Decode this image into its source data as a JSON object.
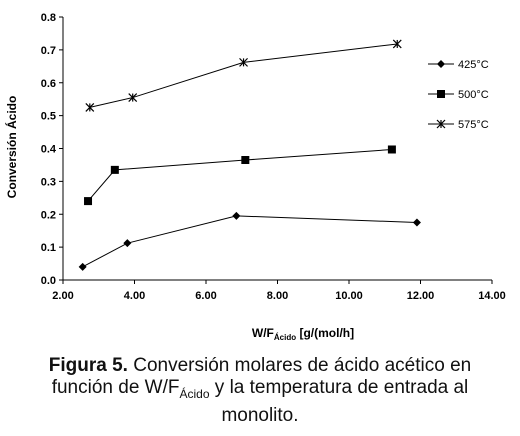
{
  "chart_data": {
    "type": "line",
    "ylabel": "Conversión Ácido",
    "xlabel": {
      "main": "W/F",
      "sub": "Ácido",
      "rest": " [g/(mol/h]"
    },
    "xlim": [
      2.0,
      14.0
    ],
    "ylim": [
      0.0,
      0.8
    ],
    "x_ticks": [
      "2.00",
      "4.00",
      "6.00",
      "8.00",
      "10.00",
      "12.00",
      "14.00"
    ],
    "y_ticks": [
      "0.0",
      "0.1",
      "0.2",
      "0.3",
      "0.4",
      "0.5",
      "0.6",
      "0.7",
      "0.8"
    ],
    "grid": false,
    "legend_position": "right",
    "series": [
      {
        "name": "425°C",
        "marker": "diamond",
        "x": [
          2.55,
          3.8,
          6.85,
          11.9
        ],
        "y": [
          0.04,
          0.112,
          0.195,
          0.175
        ]
      },
      {
        "name": "500°C",
        "marker": "square",
        "x": [
          2.7,
          3.45,
          7.1,
          11.2
        ],
        "y": [
          0.24,
          0.335,
          0.365,
          0.397
        ]
      },
      {
        "name": "575°C",
        "marker": "asterisk",
        "x": [
          2.75,
          3.95,
          7.05,
          11.35
        ],
        "y": [
          0.525,
          0.555,
          0.662,
          0.718
        ]
      }
    ]
  },
  "caption": {
    "label": "Figura 5.",
    "line1_rest": " Conversión molares de ácido acético en",
    "line2_pre": "función de W/F",
    "line2_sub": "Ácido",
    "line2_post": " y la temperatura de entrada al",
    "line3": "monolito."
  }
}
